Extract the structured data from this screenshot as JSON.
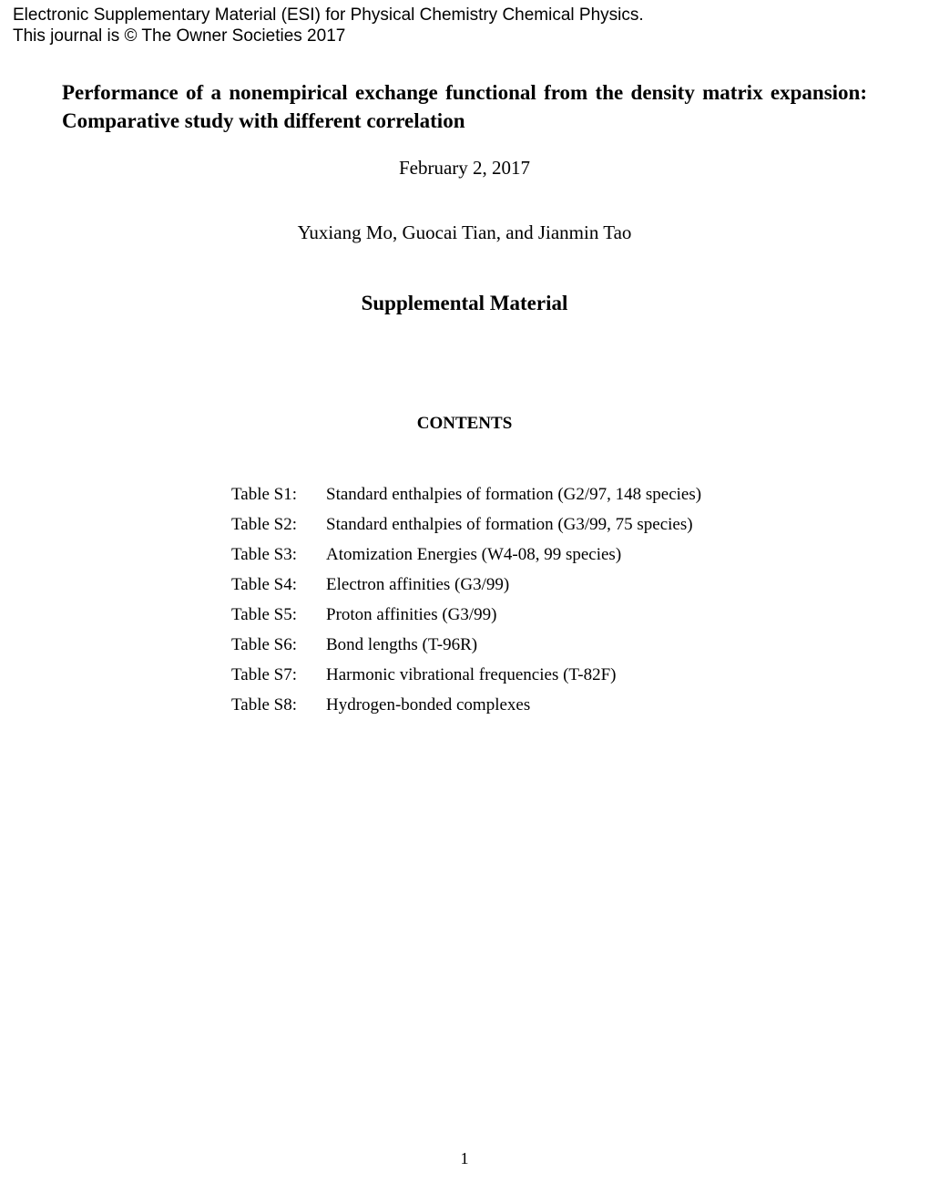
{
  "header": {
    "line1": "Electronic Supplementary Material (ESI) for Physical Chemistry Chemical Physics.",
    "line2": "This journal is © The Owner Societies 2017"
  },
  "title": "Performance of a nonempirical exchange functional from the density matrix expansion: Comparative study with different correlation",
  "date": "February 2, 2017",
  "authors": "Yuxiang Mo, Guocai Tian, and Jianmin Tao",
  "section_title": "Supplemental Material",
  "contents_heading": "CONTENTS",
  "contents": [
    {
      "label": "Table S1:",
      "desc": "Standard enthalpies of formation (G2/97, 148 species)"
    },
    {
      "label": "Table S2:",
      "desc": "Standard enthalpies of formation (G3/99, 75 species)"
    },
    {
      "label": "Table S3:",
      "desc": "Atomization Energies (W4-08, 99 species)"
    },
    {
      "label": "Table S4:",
      "desc": "Electron affinities (G3/99)"
    },
    {
      "label": "Table S5:",
      "desc": "Proton affinities (G3/99)"
    },
    {
      "label": "Table S6:",
      "desc": "Bond lengths (T-96R)"
    },
    {
      "label": "Table S7:",
      "desc": "Harmonic vibrational frequencies (T-82F)"
    },
    {
      "label": "Table S8:",
      "desc": "Hydrogen-bonded complexes"
    }
  ],
  "page_number": "1"
}
